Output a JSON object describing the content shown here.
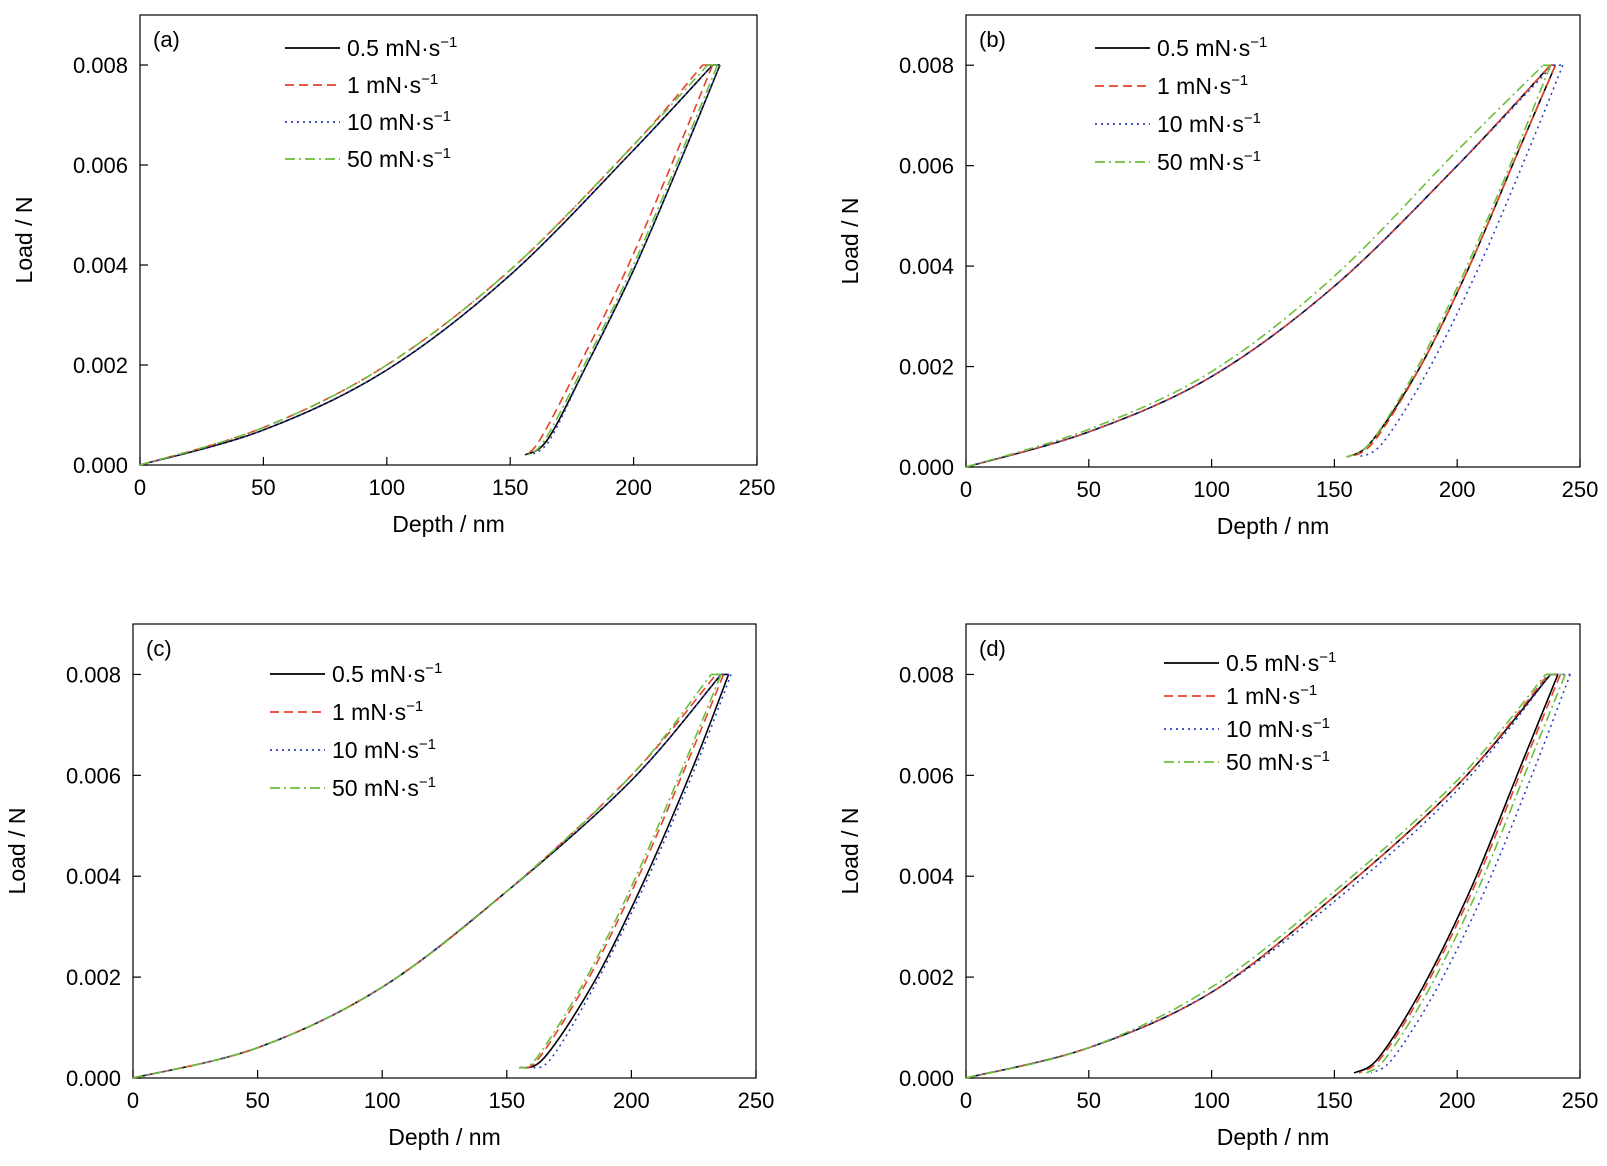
{
  "chart_data": [
    {
      "type": "line",
      "panel_label": "(a)",
      "xlabel": "Depth / nm",
      "ylabel": "Load / N",
      "xlim": [
        0,
        250
      ],
      "ylim": [
        0,
        0.009
      ],
      "xticks": [
        "0",
        "50",
        "100",
        "150",
        "200",
        "250"
      ],
      "yticks": [
        "0.000",
        "0.002",
        "0.004",
        "0.006",
        "0.008"
      ],
      "legend_position": "top-left",
      "series": [
        {
          "name": "0.5 mN·s",
          "unit_exponent": "−1",
          "color": "#000000",
          "dash": "solid",
          "loading": {
            "x": [
              0,
              50,
              100,
              150,
              200,
              232
            ],
            "y": [
              0,
              0.0007,
              0.0019,
              0.0038,
              0.0063,
              0.008
            ]
          },
          "unloading": {
            "x": [
              235,
              220,
              200,
              180,
              165,
              156
            ],
            "y": [
              0.008,
              0.0062,
              0.0039,
              0.0019,
              0.0005,
              0.0002
            ]
          }
        },
        {
          "name": "1 mN·s",
          "unit_exponent": "−1",
          "color": "#e8412a",
          "dash": "dashed",
          "loading": {
            "x": [
              0,
              50,
              100,
              150,
              200,
              228
            ],
            "y": [
              0,
              0.00075,
              0.002,
              0.0039,
              0.0064,
              0.008
            ]
          },
          "unloading": {
            "x": [
              232,
              217,
              197,
              177,
              162,
              156
            ],
            "y": [
              0.008,
              0.0062,
              0.0039,
              0.0019,
              0.0005,
              0.0002
            ]
          }
        },
        {
          "name": "10 mN·s",
          "unit_exponent": "−1",
          "color": "#2f3fc0",
          "dash": "dotted",
          "loading": {
            "x": [
              0,
              50,
              100,
              150,
              200,
              232
            ],
            "y": [
              0,
              0.0007,
              0.0019,
              0.0038,
              0.0063,
              0.008
            ]
          },
          "unloading": {
            "x": [
              235,
              220,
              200,
              180,
              166,
              158
            ],
            "y": [
              0.008,
              0.0062,
              0.0039,
              0.0019,
              0.0005,
              0.0002
            ]
          }
        },
        {
          "name": "50 mN·s",
          "unit_exponent": "−1",
          "color": "#6bbf3a",
          "dash": "dashdot",
          "loading": {
            "x": [
              0,
              50,
              100,
              150,
              200,
              230
            ],
            "y": [
              0,
              0.00075,
              0.002,
              0.0039,
              0.0064,
              0.008
            ]
          },
          "unloading": {
            "x": [
              234,
              219,
              199,
              179,
              164,
              157
            ],
            "y": [
              0.008,
              0.0062,
              0.0039,
              0.0019,
              0.0005,
              0.0002
            ]
          }
        }
      ]
    },
    {
      "type": "line",
      "panel_label": "(b)",
      "xlabel": "Depth / nm",
      "ylabel": "Load / N",
      "xlim": [
        0,
        250
      ],
      "ylim": [
        0,
        0.009
      ],
      "xticks": [
        "0",
        "50",
        "100",
        "150",
        "200",
        "250"
      ],
      "yticks": [
        "0.000",
        "0.002",
        "0.004",
        "0.006",
        "0.008"
      ],
      "legend_position": "top-left",
      "series": [
        {
          "name": "0.5 mN·s",
          "unit_exponent": "−1",
          "color": "#000000",
          "dash": "solid",
          "loading": {
            "x": [
              0,
              50,
              100,
              150,
              200,
              238
            ],
            "y": [
              0,
              0.0007,
              0.0018,
              0.0036,
              0.006,
              0.008
            ]
          },
          "unloading": {
            "x": [
              240,
              225,
              205,
              185,
              165,
              155
            ],
            "y": [
              0.008,
              0.0063,
              0.004,
              0.002,
              0.0005,
              0.0002
            ]
          }
        },
        {
          "name": "1 mN·s",
          "unit_exponent": "−1",
          "color": "#e8412a",
          "dash": "dashed",
          "loading": {
            "x": [
              0,
              50,
              100,
              150,
              200,
              238
            ],
            "y": [
              0,
              0.0007,
              0.0018,
              0.0036,
              0.006,
              0.008
            ]
          },
          "unloading": {
            "x": [
              240,
              225,
              205,
              185,
              166,
              156
            ],
            "y": [
              0.008,
              0.0063,
              0.004,
              0.002,
              0.0005,
              0.0002
            ]
          }
        },
        {
          "name": "10 mN·s",
          "unit_exponent": "−1",
          "color": "#2f3fc0",
          "dash": "dotted",
          "loading": {
            "x": [
              0,
              50,
              100,
              150,
              200,
              239
            ],
            "y": [
              0,
              0.0007,
              0.0018,
              0.0036,
              0.006,
              0.008
            ]
          },
          "unloading": {
            "x": [
              243,
              229,
              209,
              189,
              170,
              160
            ],
            "y": [
              0.008,
              0.0063,
              0.004,
              0.002,
              0.0005,
              0.0002
            ]
          }
        },
        {
          "name": "50 mN·s",
          "unit_exponent": "−1",
          "color": "#6bbf3a",
          "dash": "dashdot",
          "loading": {
            "x": [
              0,
              50,
              100,
              150,
              200,
              235
            ],
            "y": [
              0,
              0.00075,
              0.0019,
              0.0038,
              0.0063,
              0.008
            ]
          },
          "unloading": {
            "x": [
              238,
              224,
              204,
              184,
              165,
              155
            ],
            "y": [
              0.008,
              0.0063,
              0.004,
              0.002,
              0.0005,
              0.0002
            ]
          }
        }
      ]
    },
    {
      "type": "line",
      "panel_label": "(c)",
      "xlabel": "Depth / nm",
      "ylabel": "Load / N",
      "xlim": [
        0,
        250
      ],
      "ylim": [
        0,
        0.009
      ],
      "xticks": [
        "0",
        "50",
        "100",
        "150",
        "200",
        "250"
      ],
      "yticks": [
        "0.000",
        "0.002",
        "0.004",
        "0.006",
        "0.008"
      ],
      "legend_position": "top-left",
      "series": [
        {
          "name": "0.5 mN·s",
          "unit_exponent": "−1",
          "color": "#000000",
          "dash": "solid",
          "loading": {
            "x": [
              0,
              50,
              100,
              150,
              200,
              236
            ],
            "y": [
              0,
              0.0006,
              0.0018,
              0.0037,
              0.0059,
              0.008
            ]
          },
          "unloading": {
            "x": [
              239,
              225,
              205,
              185,
              165,
              155
            ],
            "y": [
              0.008,
              0.0062,
              0.0039,
              0.0019,
              0.0004,
              0.0002
            ]
          }
        },
        {
          "name": "1 mN·s",
          "unit_exponent": "−1",
          "color": "#e8412a",
          "dash": "dashed",
          "loading": {
            "x": [
              0,
              50,
              100,
              150,
              200,
              234
            ],
            "y": [
              0,
              0.0006,
              0.0018,
              0.0037,
              0.006,
              0.008
            ]
          },
          "unloading": {
            "x": [
              237,
              222,
              202,
              182,
              163,
              156
            ],
            "y": [
              0.008,
              0.0062,
              0.0039,
              0.0019,
              0.0004,
              0.0002
            ]
          }
        },
        {
          "name": "10 mN·s",
          "unit_exponent": "−1",
          "color": "#2f3fc0",
          "dash": "dotted",
          "loading": {
            "x": [
              0,
              50,
              100,
              150,
              200,
              236
            ],
            "y": [
              0,
              0.0006,
              0.0018,
              0.0037,
              0.0059,
              0.008
            ]
          },
          "unloading": {
            "x": [
              240,
              226,
              206,
              186,
              168,
              160
            ],
            "y": [
              0.008,
              0.0062,
              0.0039,
              0.0019,
              0.0004,
              0.0002
            ]
          }
        },
        {
          "name": "50 mN·s",
          "unit_exponent": "−1",
          "color": "#6bbf3a",
          "dash": "dashdot",
          "loading": {
            "x": [
              0,
              50,
              100,
              150,
              200,
              232
            ],
            "y": [
              0,
              0.0006,
              0.0018,
              0.0037,
              0.006,
              0.008
            ]
          },
          "unloading": {
            "x": [
              236,
              221,
              201,
              181,
              162,
              155
            ],
            "y": [
              0.008,
              0.0062,
              0.0039,
              0.0019,
              0.0004,
              0.0002
            ]
          }
        }
      ]
    },
    {
      "type": "line",
      "panel_label": "(d)",
      "xlabel": "Depth / nm",
      "ylabel": "Load / N",
      "xlim": [
        0,
        250
      ],
      "ylim": [
        0,
        0.009
      ],
      "xticks": [
        "0",
        "50",
        "100",
        "150",
        "200",
        "250"
      ],
      "yticks": [
        "0.000",
        "0.002",
        "0.004",
        "0.006",
        "0.008"
      ],
      "legend_position": "top-center",
      "series": [
        {
          "name": "0.5 mN·s",
          "unit_exponent": "−1",
          "color": "#000000",
          "dash": "solid",
          "loading": {
            "x": [
              0,
              50,
              100,
              150,
              200,
              238
            ],
            "y": [
              0,
              0.0006,
              0.0017,
              0.0036,
              0.0058,
              0.008
            ]
          },
          "unloading": {
            "x": [
              241,
              226,
              206,
              186,
              168,
              158
            ],
            "y": [
              0.008,
              0.0062,
              0.0038,
              0.0018,
              0.0004,
              0.0001
            ]
          }
        },
        {
          "name": "1 mN·s",
          "unit_exponent": "−1",
          "color": "#e8412a",
          "dash": "dashed",
          "loading": {
            "x": [
              0,
              50,
              100,
              150,
              200,
              237
            ],
            "y": [
              0,
              0.0006,
              0.0017,
              0.0036,
              0.0058,
              0.008
            ]
          },
          "unloading": {
            "x": [
              242,
              227,
              207,
              187,
              169,
              160
            ],
            "y": [
              0.008,
              0.0062,
              0.0038,
              0.0018,
              0.0004,
              0.0001
            ]
          }
        },
        {
          "name": "10 mN·s",
          "unit_exponent": "−1",
          "color": "#2f3fc0",
          "dash": "dotted",
          "loading": {
            "x": [
              0,
              50,
              100,
              150,
              200,
              238
            ],
            "y": [
              0,
              0.0006,
              0.0017,
              0.0035,
              0.0057,
              0.008
            ]
          },
          "unloading": {
            "x": [
              246,
              232,
              212,
              192,
              174,
              165
            ],
            "y": [
              0.008,
              0.0062,
              0.0038,
              0.0018,
              0.0004,
              0.0001
            ]
          }
        },
        {
          "name": "50 mN·s",
          "unit_exponent": "−1",
          "color": "#6bbf3a",
          "dash": "dashdot",
          "loading": {
            "x": [
              0,
              50,
              100,
              150,
              200,
              236
            ],
            "y": [
              0,
              0.0006,
              0.0018,
              0.0037,
              0.0059,
              0.008
            ]
          },
          "unloading": {
            "x": [
              244,
              229,
              209,
              189,
              171,
              163
            ],
            "y": [
              0.008,
              0.0062,
              0.0038,
              0.0018,
              0.0004,
              0.0001
            ]
          }
        }
      ]
    }
  ]
}
